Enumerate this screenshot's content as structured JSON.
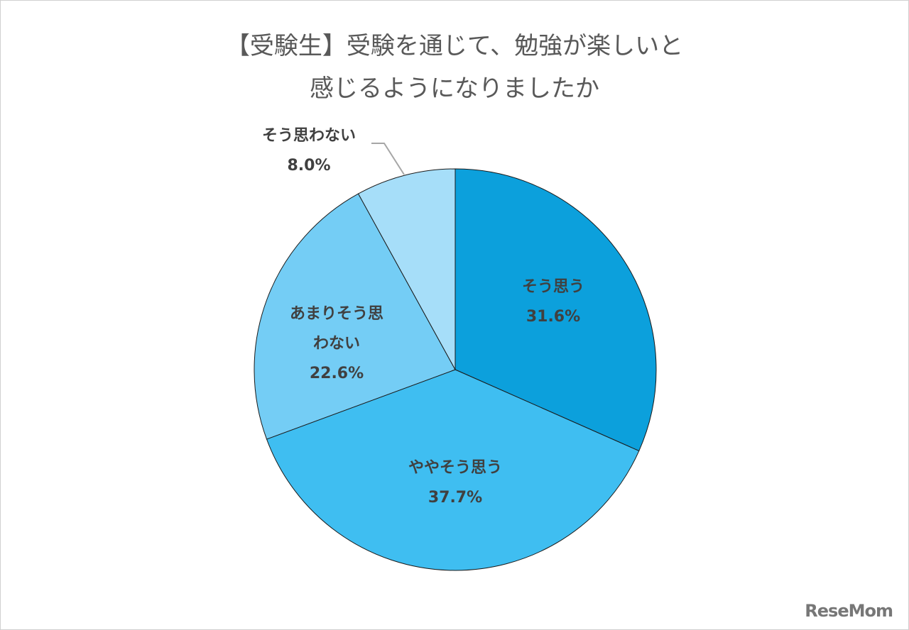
{
  "chart_data": {
    "type": "pie",
    "title_lines": [
      "【受験生】受験を通じて、勉強が楽しいと",
      "感じるようになりましたか"
    ],
    "start": "top",
    "direction": "clockwise",
    "slices": [
      {
        "label": "そう思う",
        "value": 31.6,
        "value_label": "31.6%",
        "color": "#0ca0dc"
      },
      {
        "label": "ややそう思う",
        "value": 37.7,
        "value_label": "37.7%",
        "color": "#3fbef1"
      },
      {
        "label": "あまりそう思わない",
        "value": 22.6,
        "value_label": "22.6%",
        "color": "#74cdf5",
        "label_lines": [
          "あまりそう思",
          "わない"
        ]
      },
      {
        "label": "そう思わない",
        "value": 8.0,
        "value_label": "8.0%",
        "color": "#a6def9"
      }
    ]
  },
  "logo": "ReseMom"
}
